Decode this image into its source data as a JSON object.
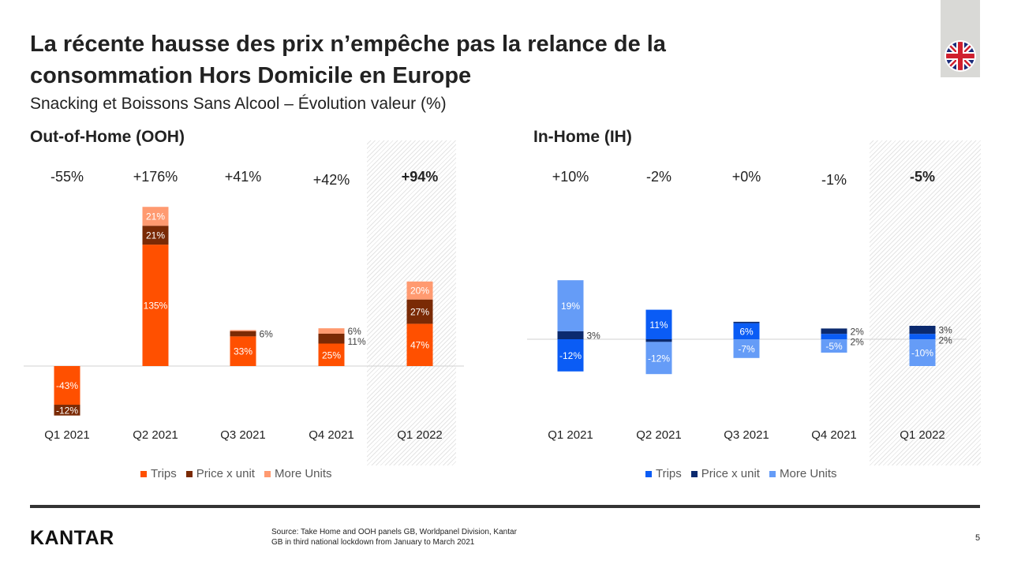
{
  "title": "La récente hausse des prix n’empêche pas la relance de la consommation Hors Domicile en Europe",
  "subtitle": "Snacking et Boissons Sans Alcool – Évolution valeur (%)",
  "flag_icon": "uk-flag-icon",
  "footer": {
    "logo": "KANTAR",
    "source_line1": "Source: Take Home and OOH  panels GB, Worldpanel Division, Kantar",
    "source_line2": "GB in third national lockdown from January to March 2021",
    "page": "5"
  },
  "chart_data": [
    {
      "type": "bar",
      "stacked": true,
      "title": "Out-of-Home (OOH)",
      "categories": [
        "Q1 2021",
        "Q2 2021",
        "Q3 2021",
        "Q4 2021",
        "Q1 2022"
      ],
      "totals": [
        "-55%",
        "+176%",
        "+41%",
        "+42%",
        "+94%"
      ],
      "highlighted_category": "Q1 2022",
      "series": [
        {
          "name": "Trips",
          "color": "#FF5000",
          "values": [
            -43,
            135,
            33,
            25,
            47
          ]
        },
        {
          "name": "Price x unit",
          "color": "#7A2A05",
          "values": [
            -12,
            21,
            6,
            11,
            27
          ]
        },
        {
          "name": "More Units",
          "color": "#FF9A70",
          "values": [
            0,
            21,
            1,
            6,
            20
          ]
        }
      ],
      "ylim": [
        -60,
        180
      ],
      "legend": "bottom",
      "grid": false
    },
    {
      "type": "bar",
      "stacked": true,
      "title": "In-Home (IH)",
      "categories": [
        "Q1 2021",
        "Q2 2021",
        "Q3 2021",
        "Q4 2021",
        "Q1 2022"
      ],
      "totals": [
        "+10%",
        "-2%",
        "+0%",
        "-1%",
        "-5%"
      ],
      "highlighted_category": "Q1 2022",
      "series": [
        {
          "name": "Trips",
          "color": "#0A5CF5",
          "values": [
            -12,
            11,
            6,
            2,
            2
          ]
        },
        {
          "name": "Price x unit",
          "color": "#0B2A6F",
          "values": [
            3,
            -1,
            0.5,
            2,
            3
          ]
        },
        {
          "name": "More Units",
          "color": "#659CF7",
          "values": [
            19,
            -12,
            -7,
            -5,
            -10
          ]
        }
      ],
      "ylim": [
        -20,
        50
      ],
      "legend": "bottom",
      "grid": false
    }
  ]
}
